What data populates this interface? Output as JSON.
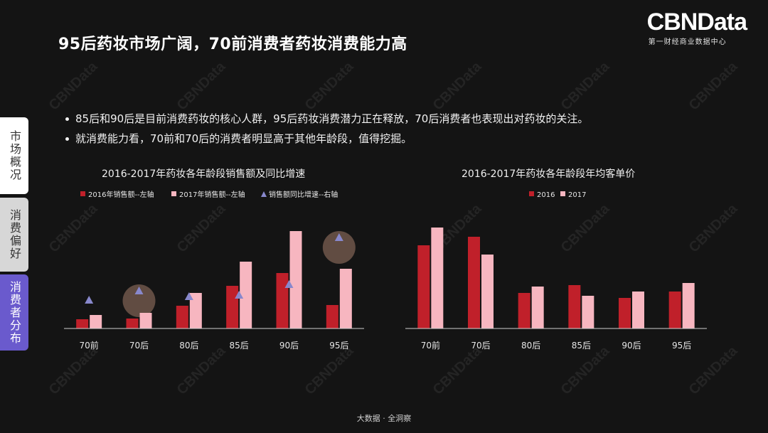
{
  "title": "95后药妆市场广阔，70前消费者药妆消费能力高",
  "logo": {
    "main": "CBNData",
    "sub": "第一财经商业数据中心",
    "watermark": "CBNData"
  },
  "bullets": [
    "85后和90后是目前消费药妆的核心人群，95后药妆消费潜力正在释放，70后消费者也表现出对药妆的关注。",
    "就消费能力看，70前和70后的消费者明显高于其他年龄段，值得挖掘。"
  ],
  "side_tabs": [
    "市场概况",
    "消费偏好",
    "消费者分布"
  ],
  "footer": "大数据 · 全洞察",
  "colors": {
    "dark_red": "#c0202a",
    "pink": "#f7b6c0",
    "triangle": "#8888cc",
    "highlight": "#8a6a5a",
    "tab_active": "#6a5acd"
  },
  "chart_data": [
    {
      "type": "bar",
      "title": "2016-2017年药妆各年龄段销售额及同比增速",
      "categories": [
        "70前",
        "70后",
        "80后",
        "85后",
        "90后",
        "95后"
      ],
      "series": [
        {
          "name": "2016年销售额--左轴",
          "values": [
            13,
            14,
            32,
            60,
            78,
            33
          ]
        },
        {
          "name": "2017年销售额--左轴",
          "values": [
            19,
            22,
            50,
            94,
            137,
            84
          ]
        },
        {
          "name": "销售额同比增速--右轴",
          "type": "scatter",
          "values": [
            40,
            53,
            45,
            47,
            62,
            128
          ]
        }
      ],
      "highlighted_categories": [
        "70后",
        "95后"
      ],
      "legend_position": "top",
      "grid": false
    },
    {
      "type": "bar",
      "title": "2016-2017年药妆各年龄段年均客单价",
      "categories": [
        "70前",
        "70后",
        "80后",
        "85后",
        "90后",
        "95后"
      ],
      "series": [
        {
          "name": "2016",
          "values": [
            117,
            129,
            50,
            61,
            43,
            52
          ]
        },
        {
          "name": "2017",
          "values": [
            142,
            104,
            59,
            46,
            52,
            64
          ]
        }
      ],
      "legend_position": "top",
      "grid": false
    }
  ]
}
